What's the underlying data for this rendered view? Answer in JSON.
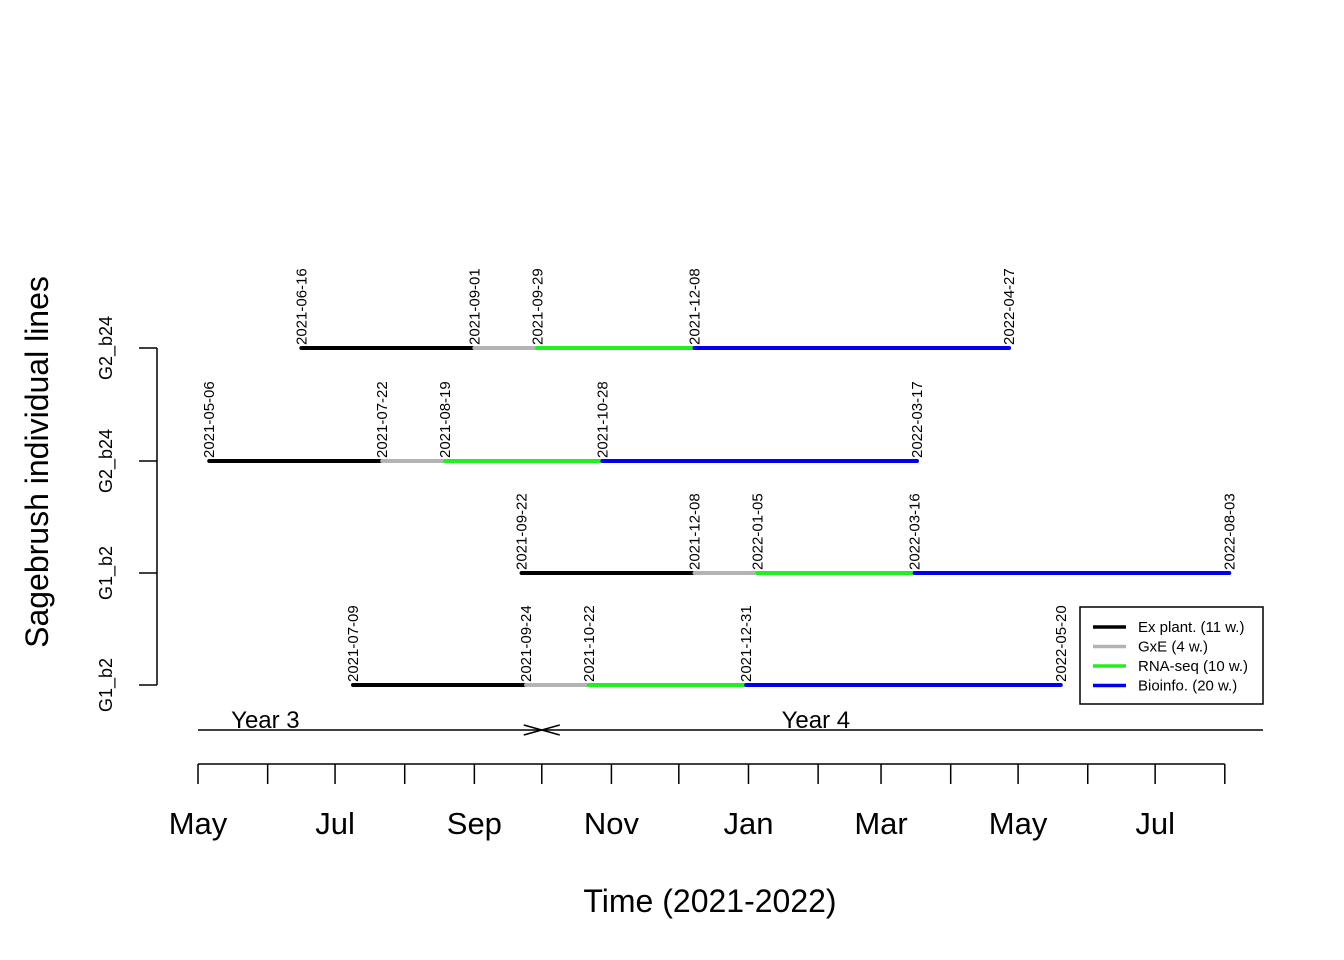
{
  "chart_data": {
    "type": "timeline",
    "ylabel": "Sagebrush individual lines",
    "xlabel": "Time (2021-2022)",
    "xlim": [
      "2021-05-01",
      "2022-08-18"
    ],
    "x_ticks": [
      "2021-05-01",
      "2021-06-01",
      "2021-07-01",
      "2021-08-01",
      "2021-09-01",
      "2021-10-01",
      "2021-11-01",
      "2021-12-01",
      "2022-01-01",
      "2022-02-01",
      "2022-03-01",
      "2022-04-01",
      "2022-05-01",
      "2022-06-01",
      "2022-07-01",
      "2022-08-01"
    ],
    "x_tick_labels": [
      {
        "date": "2021-05-01",
        "label": "May"
      },
      {
        "date": "2021-07-01",
        "label": "Jul"
      },
      {
        "date": "2021-09-01",
        "label": "Sep"
      },
      {
        "date": "2021-11-01",
        "label": "Nov"
      },
      {
        "date": "2022-01-01",
        "label": "Jan"
      },
      {
        "date": "2022-03-01",
        "label": "Mar"
      },
      {
        "date": "2022-05-01",
        "label": "May"
      },
      {
        "date": "2022-07-01",
        "label": "Jul"
      }
    ],
    "phases": [
      {
        "name": "Ex plant. (11 w.)",
        "color": "#000000"
      },
      {
        "name": "GxE (4 w.)",
        "color": "#b3b3b3"
      },
      {
        "name": "RNA-seq (10 w.)",
        "color": "#22ee22"
      },
      {
        "name": "Bioinfo. (20 w.)",
        "color": "#0000ee"
      }
    ],
    "rows": [
      {
        "label": "G1_b2",
        "dates": [
          "2021-07-09",
          "2021-09-24",
          "2021-10-22",
          "2021-12-31",
          "2022-05-20"
        ]
      },
      {
        "label": "G1_b2",
        "dates": [
          "2021-09-22",
          "2021-12-08",
          "2022-01-05",
          "2022-03-16",
          "2022-08-03"
        ]
      },
      {
        "label": "G2_b24",
        "dates": [
          "2021-05-06",
          "2021-07-22",
          "2021-08-19",
          "2021-10-28",
          "2022-03-17"
        ]
      },
      {
        "label": "G2_b24",
        "dates": [
          "2021-06-16",
          "2021-09-01",
          "2021-09-29",
          "2021-12-08",
          "2022-04-27"
        ]
      }
    ],
    "year_bar": {
      "start": "2021-05-01",
      "break": "2021-10-01",
      "end": "2022-08-18",
      "labels": [
        {
          "text": "Year 3",
          "at": "2021-05-31"
        },
        {
          "text": "Year 4",
          "at": "2022-01-31"
        }
      ]
    },
    "legend_position": "right"
  }
}
